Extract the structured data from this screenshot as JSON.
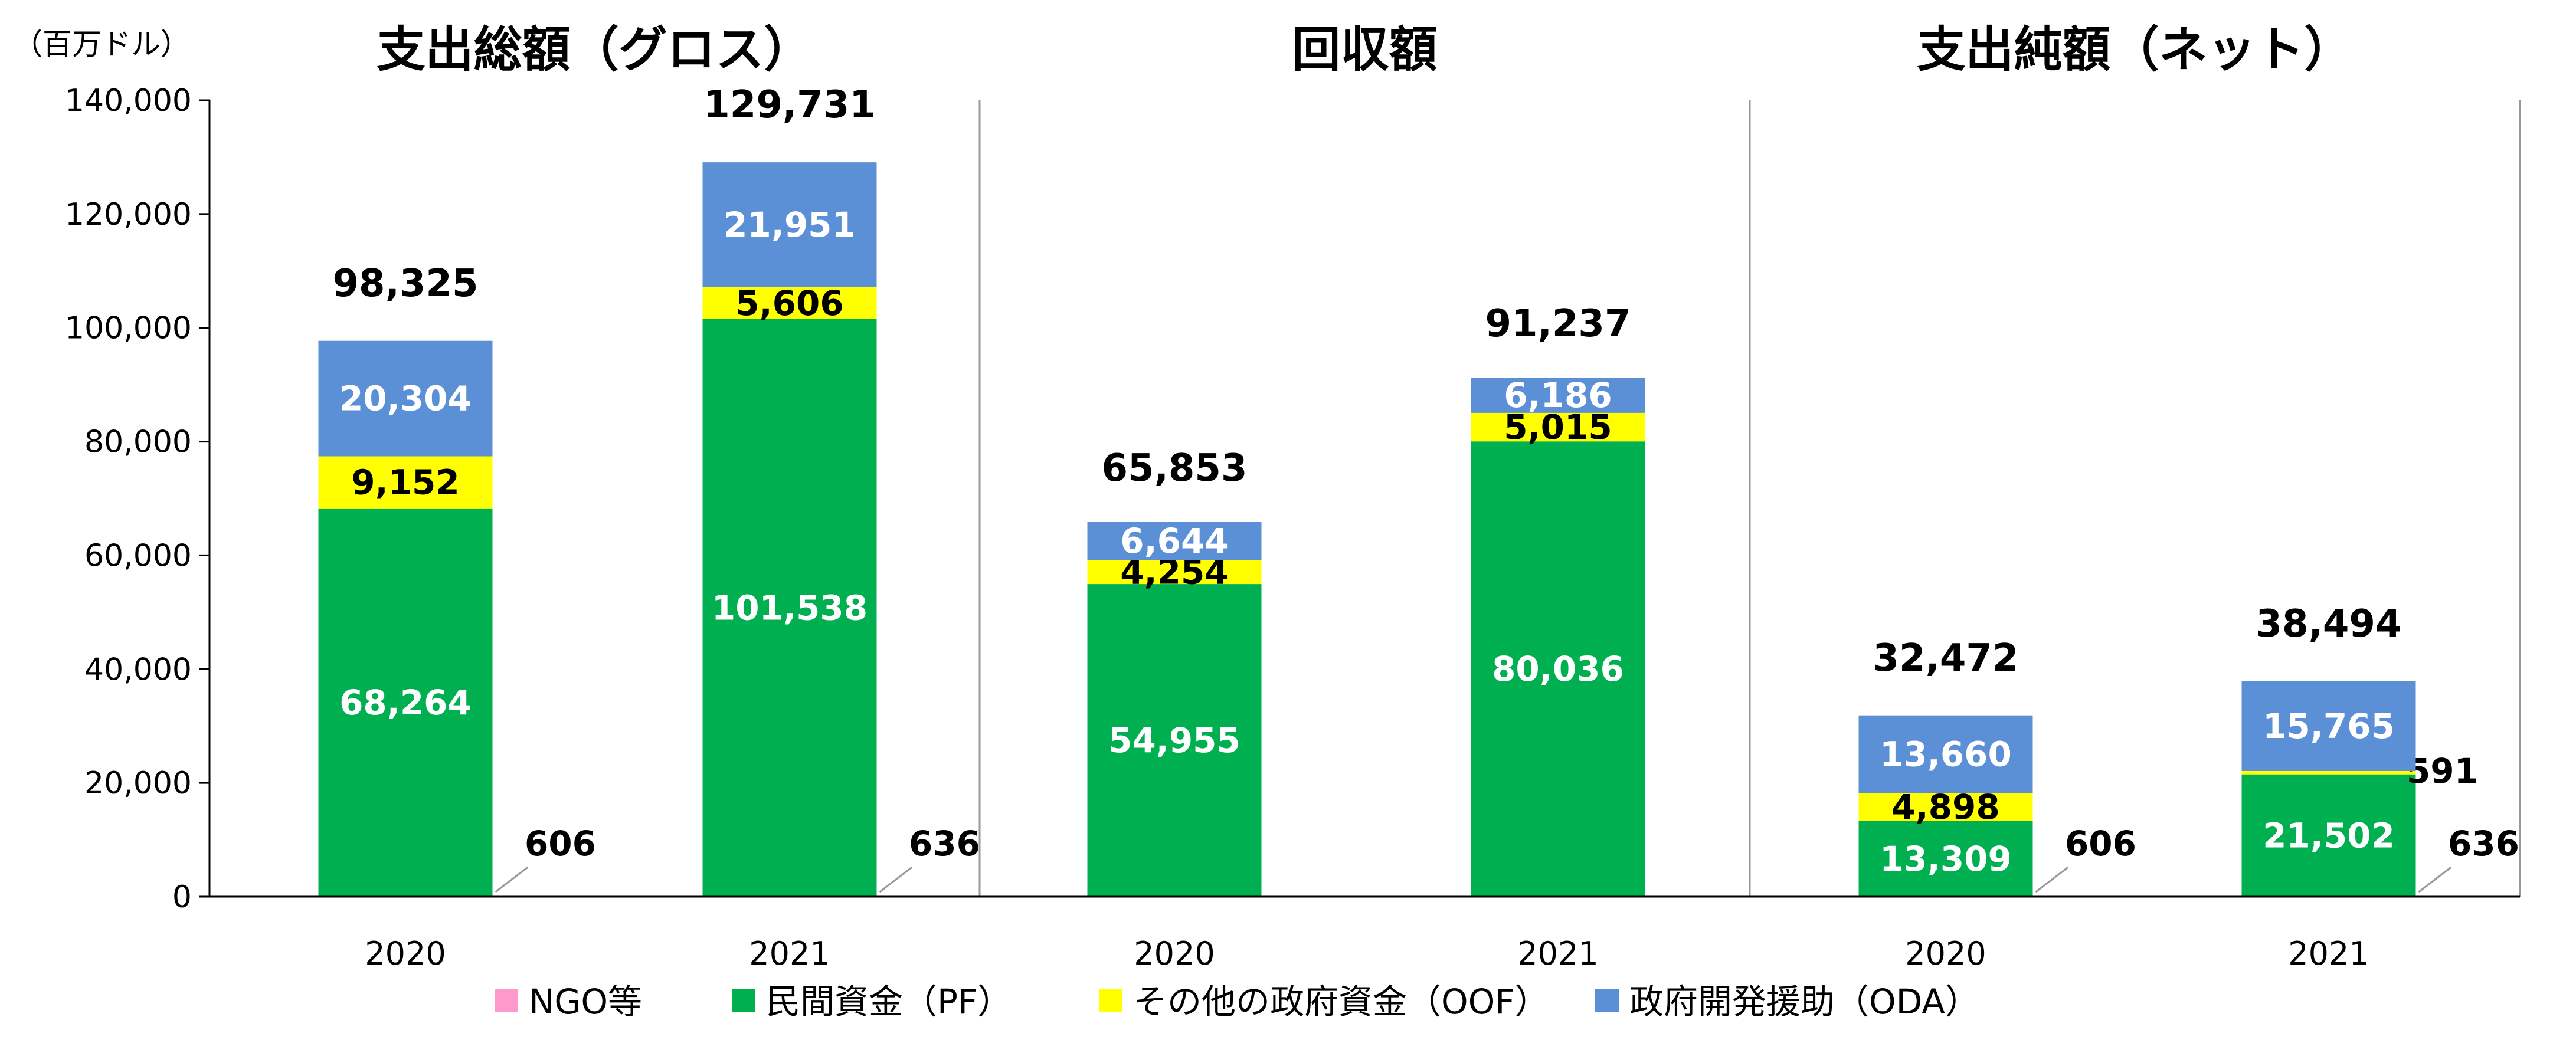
{
  "chart_data": {
    "type": "bar",
    "stacked": true,
    "unit_label": "（百万ドル）",
    "ylim": [
      0,
      140000
    ],
    "y_ticks": [
      0,
      20000,
      40000,
      60000,
      80000,
      100000,
      120000,
      140000
    ],
    "y_tick_labels": [
      "0",
      "20,000",
      "40,000",
      "60,000",
      "80,000",
      "100,000",
      "120,000",
      "140,000"
    ],
    "grid": false,
    "legend_position": "bottom",
    "groups": [
      {
        "title": "支出総額（グロス）",
        "bars": [
          {
            "year": "2020",
            "values": {
              "ngo": 606,
              "pf": 68264,
              "oof": 9152,
              "oda": 20304
            },
            "labels": {
              "ngo": "606",
              "pf": "68,264",
              "oof": "9,152",
              "oda": "20,304"
            },
            "total": 98325,
            "total_label": "98,325"
          },
          {
            "year": "2021",
            "values": {
              "ngo": 636,
              "pf": 101538,
              "oof": 5606,
              "oda": 21951
            },
            "labels": {
              "ngo": "636",
              "pf": "101,538",
              "oof": "5,606",
              "oda": "21,951"
            },
            "total": 129731,
            "total_label": "129,731"
          }
        ]
      },
      {
        "title": "回収額",
        "bars": [
          {
            "year": "2020",
            "values": {
              "pf": 54955,
              "oof": 4254,
              "oda": 6644
            },
            "labels": {
              "pf": "54,955",
              "oof": "4,254",
              "oda": "6,644"
            },
            "total": 65853,
            "total_label": "65,853"
          },
          {
            "year": "2021",
            "values": {
              "pf": 80036,
              "oof": 5015,
              "oda": 6186
            },
            "labels": {
              "pf": "80,036",
              "oof": "5,015",
              "oda": "6,186"
            },
            "total": 91237,
            "total_label": "91,237"
          }
        ]
      },
      {
        "title": "支出純額（ネット）",
        "bars": [
          {
            "year": "2020",
            "values": {
              "ngo": 606,
              "pf": 13309,
              "oof": 4898,
              "oda": 13660
            },
            "labels": {
              "ngo": "606",
              "pf": "13,309",
              "oof": "4,898",
              "oda": "13,660"
            },
            "total": 32472,
            "total_label": "32,472"
          },
          {
            "year": "2021",
            "values": {
              "ngo": 636,
              "pf": 21502,
              "oof": 591,
              "oda": 15765
            },
            "labels": {
              "ngo": "636",
              "pf": "21,502",
              "oof": "591",
              "oda": "15,765"
            },
            "total": 38494,
            "total_label": "38,494"
          }
        ]
      }
    ],
    "series": [
      {
        "key": "ngo",
        "name": "NGO等",
        "color": "#ff99cc"
      },
      {
        "key": "pf",
        "name": "民間資金（PF）",
        "color": "#00b050"
      },
      {
        "key": "oof",
        "name": "その他の政府資金（OOF）",
        "color": "#ffff00"
      },
      {
        "key": "oda",
        "name": "政府開発援助（ODA）",
        "color": "#5b8fd6"
      }
    ]
  }
}
